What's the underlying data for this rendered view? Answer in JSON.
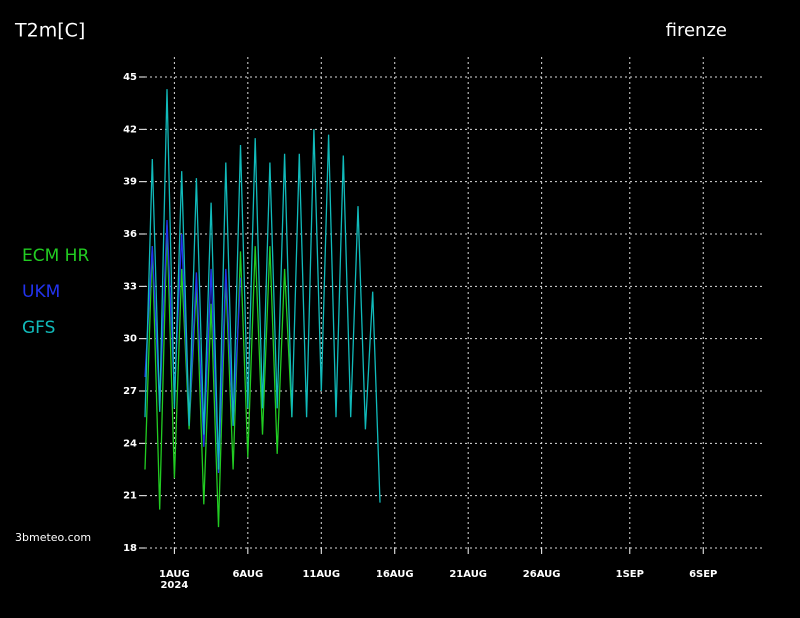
{
  "chart_data": {
    "type": "line",
    "title": "T2m[C]",
    "location": "firenze",
    "source": "3bmeteo.com",
    "xaxis_year_label": "2024",
    "x": [
      "2024-07-30T00:00",
      "2024-07-30T12:00",
      "2024-07-31T00:00",
      "2024-07-31T12:00",
      "2024-08-01T00:00",
      "2024-08-01T12:00",
      "2024-08-02T00:00",
      "2024-08-02T12:00",
      "2024-08-03T00:00",
      "2024-08-03T12:00",
      "2024-08-04T00:00",
      "2024-08-04T12:00",
      "2024-08-05T00:00",
      "2024-08-05T12:00",
      "2024-08-06T00:00",
      "2024-08-06T12:00",
      "2024-08-07T00:00",
      "2024-08-07T12:00",
      "2024-08-08T00:00",
      "2024-08-08T12:00",
      "2024-08-09T00:00",
      "2024-08-09T12:00",
      "2024-08-10T00:00",
      "2024-08-10T12:00",
      "2024-08-11T00:00",
      "2024-08-11T12:00",
      "2024-08-12T00:00",
      "2024-08-12T12:00",
      "2024-08-13T00:00",
      "2024-08-13T12:00",
      "2024-08-14T00:00",
      "2024-08-14T12:00",
      "2024-08-15T00:00"
    ],
    "series": [
      {
        "name": "ECM HR",
        "color": "#22cc22",
        "values": [
          22.5,
          35.3,
          20.2,
          36.5,
          22,
          34,
          24.8,
          33,
          20.5,
          32,
          19.2,
          33.5,
          22.5,
          35,
          23.2,
          35.3,
          24.5,
          35.3,
          23.4,
          34,
          25.5,
          null,
          null,
          null,
          null,
          null,
          null,
          null,
          null,
          null,
          null,
          null,
          null
        ]
      },
      {
        "name": "UKM",
        "color": "#2233ee",
        "values": [
          27.8,
          35.3,
          26,
          36.8,
          26.8,
          36,
          25.2,
          33.8,
          23.8,
          34,
          22.3,
          34,
          25,
          33.5,
          null,
          null,
          null,
          null,
          null,
          null,
          null,
          null,
          null,
          null,
          null,
          null,
          null,
          null,
          null,
          null,
          null,
          null,
          null
        ]
      },
      {
        "name": "GFS",
        "color": "#11bbbb",
        "values": [
          25.5,
          40.3,
          25.8,
          44.3,
          26,
          39.6,
          25,
          39.2,
          24.5,
          37.8,
          22.5,
          40.1,
          25,
          41.1,
          26,
          41.5,
          26,
          40.1,
          26,
          40.6,
          25.5,
          40.6,
          25.5,
          42,
          27,
          41.7,
          25.5,
          40.5,
          25.5,
          37.6,
          24.8,
          32.7,
          20.6
        ]
      }
    ],
    "xlim": [
      "2024-07-30T00:00",
      "2024-09-10T00:00"
    ],
    "xticks": [
      {
        "value": "2024-08-01T00:00",
        "label": "1AUG"
      },
      {
        "value": "2024-08-06T00:00",
        "label": "6AUG"
      },
      {
        "value": "2024-08-11T00:00",
        "label": "11AUG"
      },
      {
        "value": "2024-08-16T00:00",
        "label": "16AUG"
      },
      {
        "value": "2024-08-21T00:00",
        "label": "21AUG"
      },
      {
        "value": "2024-08-26T00:00",
        "label": "26AUG"
      },
      {
        "value": "2024-09-01T00:00",
        "label": "1SEP"
      },
      {
        "value": "2024-09-06T00:00",
        "label": "6SEP"
      }
    ],
    "ylim": [
      18,
      45
    ],
    "yticks": [
      18,
      21,
      24,
      27,
      30,
      33,
      36,
      39,
      42,
      45
    ],
    "grid": true
  }
}
